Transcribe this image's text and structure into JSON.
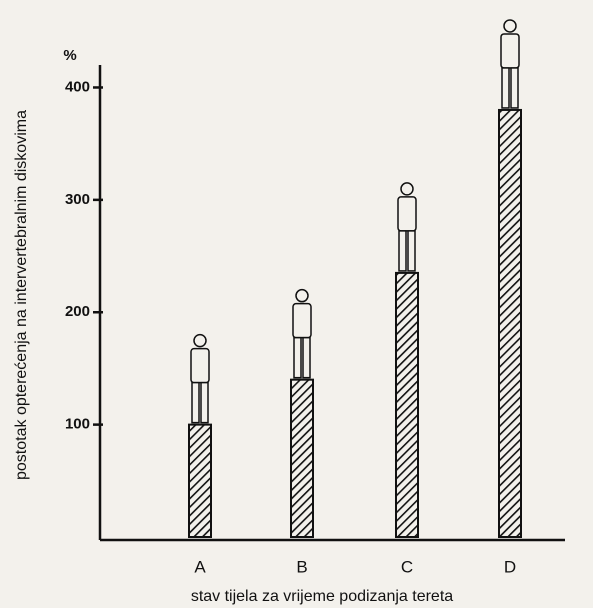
{
  "chart_data": {
    "type": "bar",
    "y_unit": "%",
    "y_label": "postotak opterećenja na intervertebralnim diskovima",
    "x_label": "stav tijela za vrijeme podizanja tereta",
    "categories": [
      "A",
      "B",
      "C",
      "D"
    ],
    "values": [
      100,
      140,
      235,
      380
    ],
    "color": "#111111",
    "hatch": true,
    "ylim": [
      0,
      420
    ],
    "yticks": [
      100,
      200,
      300,
      400
    ]
  }
}
